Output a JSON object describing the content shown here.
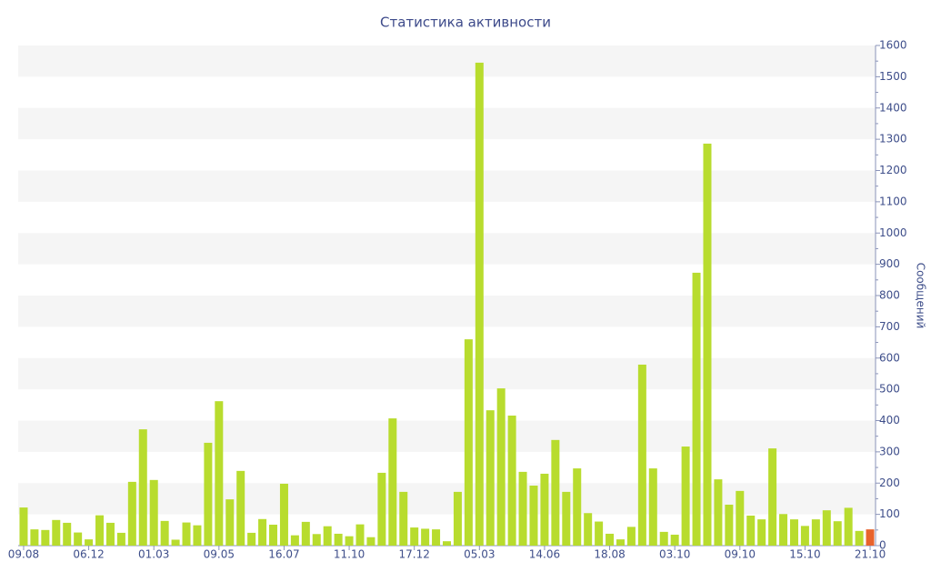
{
  "chart_data": {
    "type": "bar",
    "title": "Статистика активности",
    "y_axis_label": "Сообщений",
    "y_axis_side": "right",
    "categories": [
      "09.08",
      null,
      null,
      null,
      null,
      null,
      "06.12",
      null,
      null,
      null,
      null,
      null,
      "01.03",
      null,
      null,
      null,
      null,
      null,
      "09.05",
      null,
      null,
      null,
      null,
      null,
      "16.07",
      null,
      null,
      null,
      null,
      null,
      "11.10",
      null,
      null,
      null,
      null,
      null,
      "17.12",
      null,
      null,
      null,
      null,
      null,
      "05.03",
      null,
      null,
      null,
      null,
      null,
      "14.06",
      null,
      null,
      null,
      null,
      null,
      "18.08",
      null,
      null,
      null,
      null,
      null,
      "03.10",
      null,
      null,
      null,
      null,
      null,
      "09.10",
      null,
      null,
      null,
      null,
      null,
      "15.10",
      null,
      null,
      null,
      null,
      null,
      "21.10"
    ],
    "values": [
      122,
      52,
      50,
      82,
      73,
      42,
      20,
      97,
      73,
      41,
      204,
      372,
      210,
      79,
      19,
      74,
      65,
      329,
      462,
      148,
      239,
      41,
      85,
      67,
      198,
      33,
      76,
      37,
      62,
      38,
      30,
      68,
      27,
      233,
      407,
      172,
      58,
      54,
      52,
      14,
      172,
      660,
      1545,
      433,
      503,
      416,
      236,
      192,
      230,
      338,
      172,
      247,
      104,
      77,
      38,
      20,
      60,
      579,
      247,
      44,
      35,
      317,
      873,
      1286,
      212,
      131,
      175,
      96,
      84,
      311,
      101,
      84,
      63,
      84,
      113,
      78,
      121,
      47,
      52
    ],
    "color": "#b8dc2e",
    "last_color": "#e8632c",
    "ylim": [
      0,
      1600
    ],
    "yticks": [
      0,
      100,
      200,
      300,
      400,
      500,
      600,
      700,
      800,
      900,
      1000,
      1100,
      1200,
      1300,
      1400,
      1500,
      1600
    ],
    "grid": "bands"
  }
}
